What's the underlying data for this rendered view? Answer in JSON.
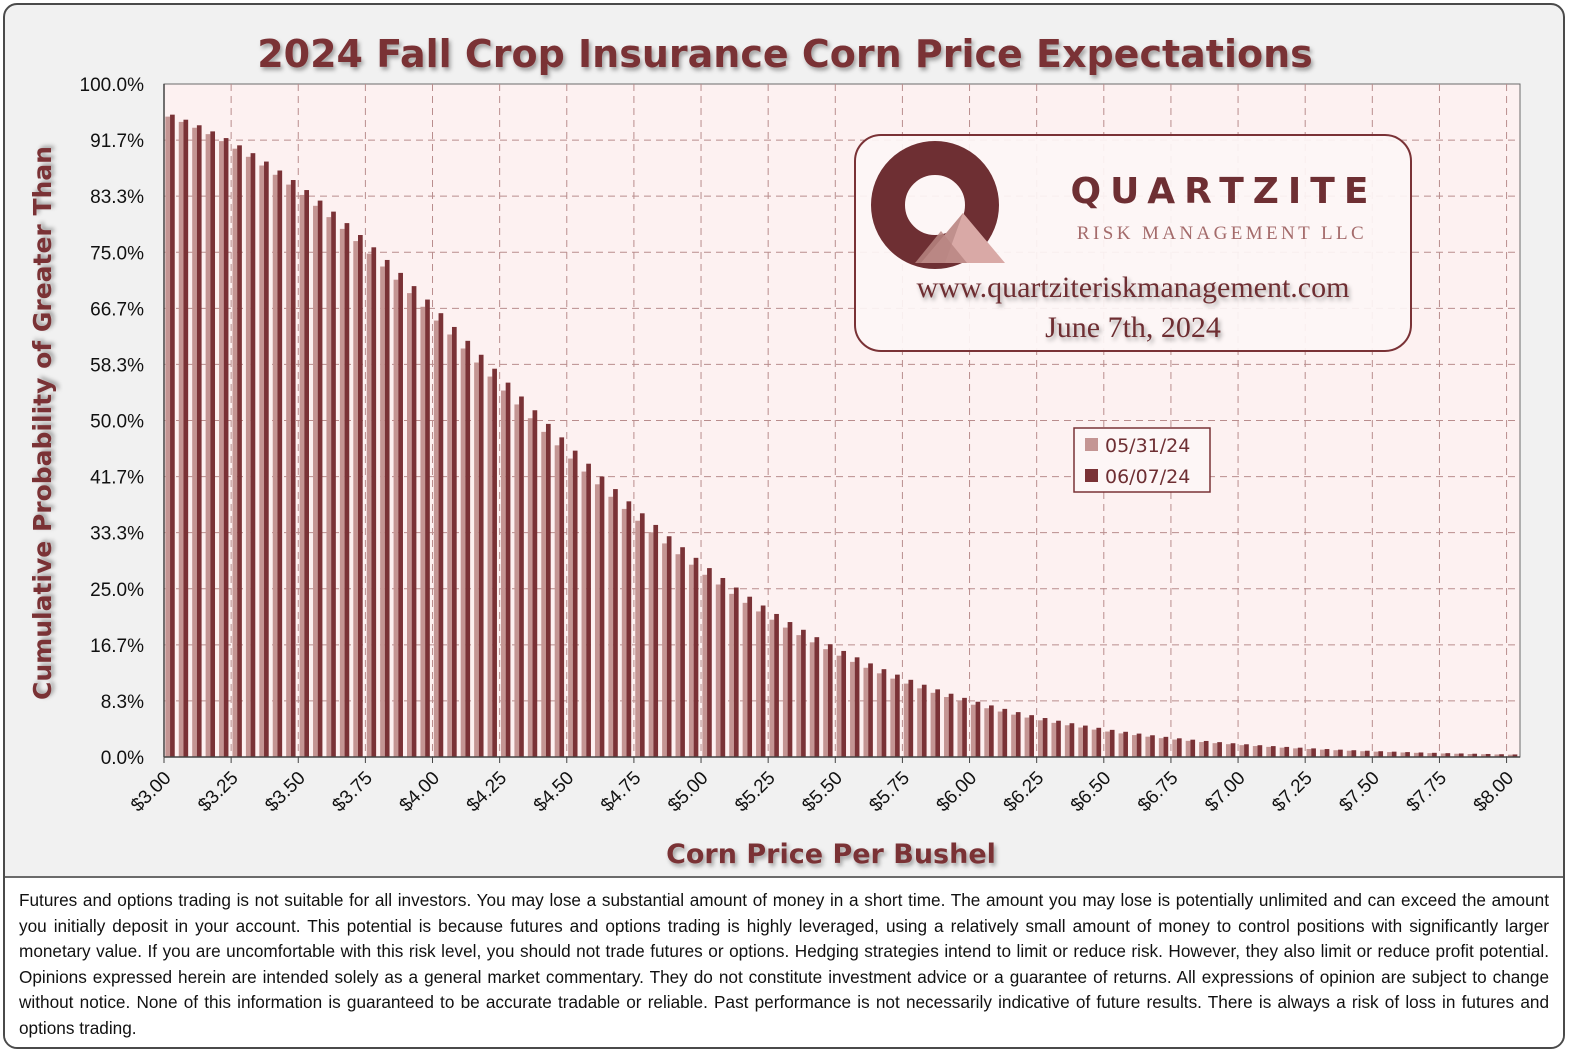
{
  "chart_data": {
    "type": "bar",
    "title": "2024 Fall Crop Insurance Corn Price Expectations",
    "xlabel": "Corn Price Per Bushel",
    "ylabel": "Cumulative Probability of Greater Than",
    "x_tick_labels": [
      "$3.00",
      "$3.25",
      "$3.50",
      "$3.75",
      "$4.00",
      "$4.25",
      "$4.50",
      "$4.75",
      "$5.00",
      "$5.25",
      "$5.50",
      "$5.75",
      "$6.00",
      "$6.25",
      "$6.50",
      "$6.75",
      "$7.00",
      "$7.25",
      "$7.50",
      "$7.75",
      "$8.00"
    ],
    "y_tick_labels": [
      "100.0%",
      "91.7%",
      "83.3%",
      "75.0%",
      "66.7%",
      "58.3%",
      "50.0%",
      "41.7%",
      "33.3%",
      "25.0%",
      "16.7%",
      "8.3%",
      "0.0%"
    ],
    "xlim": [
      3.0,
      8.05
    ],
    "ylim": [
      0,
      1
    ],
    "x_step": 0.05,
    "grid": true,
    "legend_position": "center-right",
    "series": [
      {
        "name": "05/31/24",
        "color": "#c49593",
        "distribution": "lognormal",
        "mean_price": 4.47,
        "volatility": 0.225
      },
      {
        "name": "06/07/24",
        "color": "#7a3236",
        "distribution": "lognormal",
        "mean_price": 4.5,
        "volatility": 0.225
      }
    ]
  },
  "logo": {
    "company": "QUARTZITE",
    "subtitle": "RISK MANAGEMENT LLC",
    "website": "www.quartziteriskmanagement.com",
    "date": "June 7th, 2024"
  },
  "colors": {
    "title": "#7a3236",
    "plot_bg": "#fdf1f1",
    "grid": "#b98d8d",
    "accent": "#6e2f33"
  },
  "disclaimer": "Futures and options trading is not suitable for all investors. You may lose a substantial amount of money in a short time. The amount you may lose is potentially unlimited and can exceed the amount you initially deposit in your account. This potential is because futures and options trading is highly leveraged, using a relatively small amount of money to control positions with significantly larger monetary value. If you are uncomfortable with this risk level, you should not trade futures or options. Hedging strategies intend to limit or reduce risk. However, they also limit or reduce profit potential. Opinions expressed herein are intended solely as a general market commentary. They do not constitute investment advice or a guarantee of returns. All expressions of opinion are subject to change without notice. None of this information is guaranteed to be accurate tradable or reliable. Past performance is not necessarily indicative of future results. There is always a risk of loss in futures and options trading."
}
